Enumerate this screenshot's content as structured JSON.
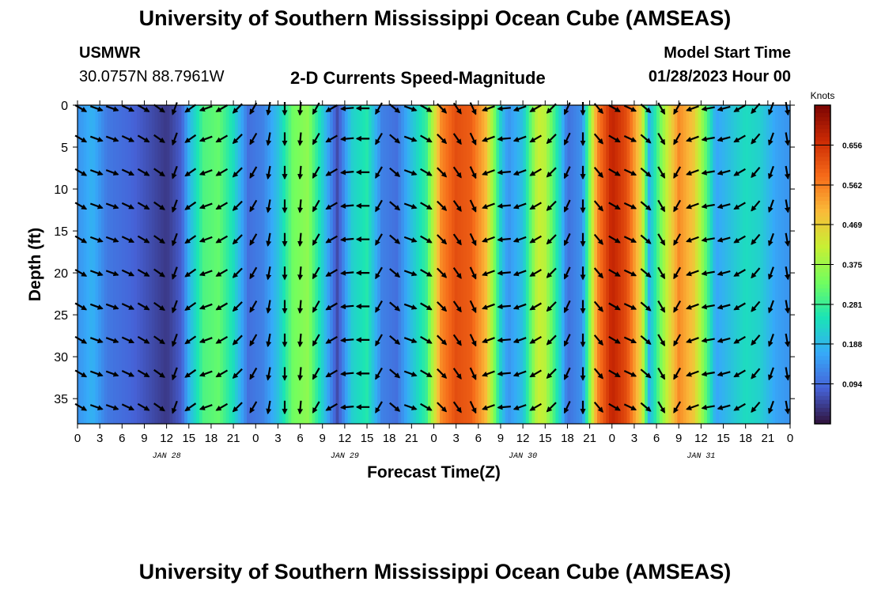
{
  "header": {
    "title": "University of Southern Mississippi Ocean Cube (AMSEAS)",
    "station": "USMWR",
    "coords": "30.0757N  88.7961W",
    "subtitle": "2-D Currents Speed-Magnitude",
    "model_start_label": "Model Start Time",
    "model_start_value": "01/28/2023 Hour 00",
    "footer_title": "University of Southern Mississippi Ocean Cube (AMSEAS)"
  },
  "colors": {
    "colormap": [
      "#30123b",
      "#4662d7",
      "#36aaf9",
      "#1ae4b6",
      "#72fe5e",
      "#c8ef34",
      "#faba39",
      "#f66b19",
      "#cb2a04",
      "#7a0403"
    ]
  },
  "chart_data": {
    "type": "heatmap",
    "title": "2-D Currents Speed-Magnitude",
    "xlabel": "Forecast Time(Z)",
    "ylabel": "Depth (ft)",
    "colorbar_label": "Knots",
    "colorbar_ticks": [
      0.094,
      0.188,
      0.281,
      0.375,
      0.469,
      0.562,
      0.656
    ],
    "colorbar_range": [
      0.0,
      0.75
    ],
    "x_range_hours": [
      0,
      96
    ],
    "x_tick_labels": [
      "0",
      "3",
      "6",
      "9",
      "12",
      "15",
      "18",
      "21",
      "0",
      "3",
      "6",
      "9",
      "12",
      "15",
      "18",
      "21",
      "0",
      "3",
      "6",
      "9",
      "12",
      "15",
      "18",
      "21",
      "0",
      "3",
      "6",
      "9",
      "12",
      "15",
      "18",
      "21",
      "0"
    ],
    "day_labels": [
      {
        "hour": 12,
        "label": "JAN 28"
      },
      {
        "hour": 36,
        "label": "JAN 29"
      },
      {
        "hour": 60,
        "label": "JAN 30"
      },
      {
        "hour": 84,
        "label": "JAN 31"
      }
    ],
    "y_range_ft": [
      0,
      38
    ],
    "y_ticks": [
      0,
      5,
      10,
      15,
      20,
      25,
      30,
      35
    ],
    "y_inverted": true,
    "speed_profile_by_hour": [
      {
        "hour": 0,
        "speed": 0.14
      },
      {
        "hour": 2,
        "speed": 0.18
      },
      {
        "hour": 4,
        "speed": 0.11
      },
      {
        "hour": 7,
        "speed": 0.09
      },
      {
        "hour": 10,
        "speed": 0.06
      },
      {
        "hour": 12,
        "speed": 0.04
      },
      {
        "hour": 14,
        "speed": 0.08
      },
      {
        "hour": 15,
        "speed": 0.18
      },
      {
        "hour": 17,
        "speed": 0.3
      },
      {
        "hour": 19,
        "speed": 0.32
      },
      {
        "hour": 21,
        "speed": 0.24
      },
      {
        "hour": 23,
        "speed": 0.1
      },
      {
        "hour": 25,
        "speed": 0.12
      },
      {
        "hour": 27,
        "speed": 0.2
      },
      {
        "hour": 29,
        "speed": 0.33
      },
      {
        "hour": 31,
        "speed": 0.36
      },
      {
        "hour": 33,
        "speed": 0.22
      },
      {
        "hour": 35,
        "speed": 0.06
      },
      {
        "hour": 37,
        "speed": 0.22
      },
      {
        "hour": 39,
        "speed": 0.26
      },
      {
        "hour": 41,
        "speed": 0.12
      },
      {
        "hour": 43,
        "speed": 0.1
      },
      {
        "hour": 45,
        "speed": 0.2
      },
      {
        "hour": 47,
        "speed": 0.28
      },
      {
        "hour": 49,
        "speed": 0.55
      },
      {
        "hour": 51,
        "speed": 0.62
      },
      {
        "hour": 53,
        "speed": 0.6
      },
      {
        "hour": 55,
        "speed": 0.5
      },
      {
        "hour": 57,
        "speed": 0.22
      },
      {
        "hour": 58,
        "speed": 0.14
      },
      {
        "hour": 60,
        "speed": 0.2
      },
      {
        "hour": 62,
        "speed": 0.42
      },
      {
        "hour": 63,
        "speed": 0.4
      },
      {
        "hour": 65,
        "speed": 0.22
      },
      {
        "hour": 66,
        "speed": 0.1
      },
      {
        "hour": 68,
        "speed": 0.14
      },
      {
        "hour": 70,
        "speed": 0.55
      },
      {
        "hour": 72,
        "speed": 0.68
      },
      {
        "hour": 74,
        "speed": 0.62
      },
      {
        "hour": 76,
        "speed": 0.45
      },
      {
        "hour": 77,
        "speed": 0.18
      },
      {
        "hour": 79,
        "speed": 0.38
      },
      {
        "hour": 81,
        "speed": 0.55
      },
      {
        "hour": 83,
        "speed": 0.48
      },
      {
        "hour": 85,
        "speed": 0.28
      },
      {
        "hour": 86,
        "speed": 0.16
      },
      {
        "hour": 88,
        "speed": 0.2
      },
      {
        "hour": 90,
        "speed": 0.24
      },
      {
        "hour": 92,
        "speed": 0.22
      },
      {
        "hour": 94,
        "speed": 0.16
      },
      {
        "hour": 96,
        "speed": 0.14
      }
    ],
    "arrow_direction_deg_by_column": [
      -30,
      -20,
      -20,
      -25,
      -30,
      -35,
      -110,
      -145,
      -160,
      -150,
      -135,
      -120,
      -100,
      -90,
      -95,
      -120,
      -150,
      -175,
      -180,
      -120,
      -40,
      -20,
      -30,
      -45,
      -55,
      -65,
      -160,
      -175,
      -160,
      -150,
      -135,
      -115,
      -90,
      -50,
      -30,
      -25,
      -40,
      -60,
      -120,
      -160,
      -170,
      -165,
      -150,
      -130,
      -110,
      -80
    ]
  }
}
